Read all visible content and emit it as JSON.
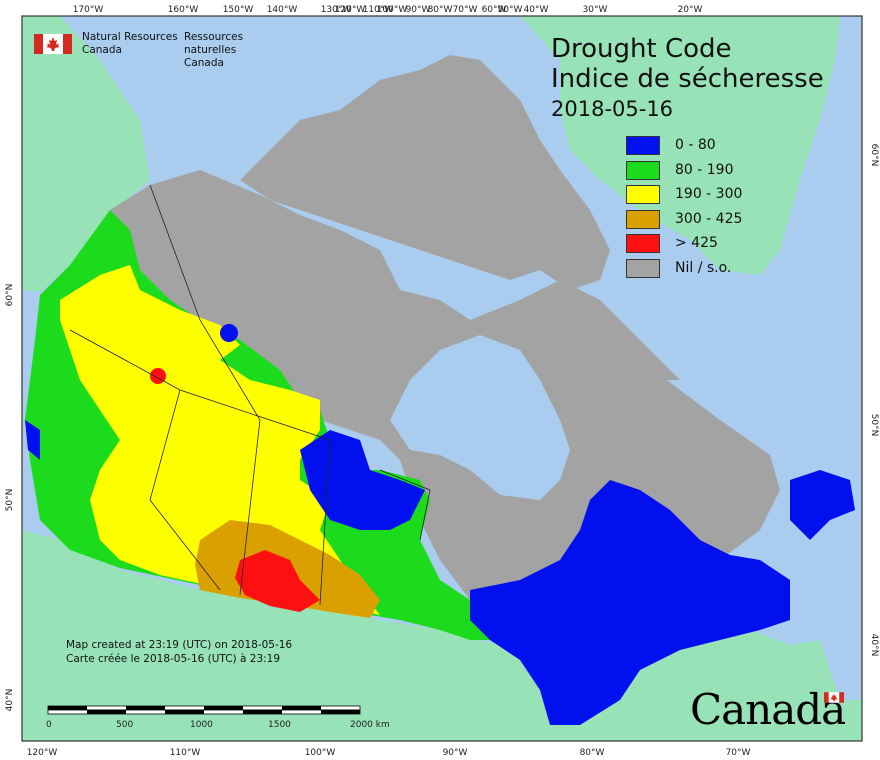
{
  "agency": {
    "en_line1": "Natural Resources",
    "en_line2": "Canada",
    "fr_line1": "Ressources naturelles",
    "fr_line2": "Canada"
  },
  "title": {
    "en": "Drought Code",
    "fr": "Indice de sécheresse",
    "date": "2018-05-16"
  },
  "legend": [
    {
      "label": "0 - 80",
      "color": "#0010ee"
    },
    {
      "label": "80 - 190",
      "color": "#1cdb1c"
    },
    {
      "label": "190 - 300",
      "color": "#ffff00"
    },
    {
      "label": "300 - 425",
      "color": "#d9a000"
    },
    {
      "label": "> 425",
      "color": "#ff1010"
    },
    {
      "label": "Nil / s.o.",
      "color": "#a3a3a3"
    }
  ],
  "credits": {
    "line_en": "Map created at 23:19 (UTC) on 2018-05-16",
    "line_fr": "Carte créée le 2018-05-16 (UTC) à 23:19"
  },
  "scale": {
    "labels": [
      "0",
      "500",
      "1000",
      "1500",
      "2000 km"
    ]
  },
  "wordmark": "Canada",
  "graticule": {
    "top": [
      "170°W",
      "160°W",
      "150°W",
      "140°W",
      "130°W",
      "120°W",
      "110°W",
      "100°W",
      "90°W",
      "80°W",
      "70°W",
      "60°W",
      "50°W",
      "40°W",
      "30°W",
      "20°W"
    ],
    "bottom": [
      "120°W",
      "110°W",
      "100°W",
      "90°W",
      "80°W",
      "70°W"
    ],
    "left": [
      "60°N",
      "50°N",
      "40°N"
    ],
    "right": [
      "60°N",
      "50°N",
      "40°N"
    ]
  },
  "colors": {
    "ocean": "#a9ccef",
    "foreign_land": "#98e2b8",
    "nodata": "#a3a3a3",
    "frame": "#333333"
  }
}
